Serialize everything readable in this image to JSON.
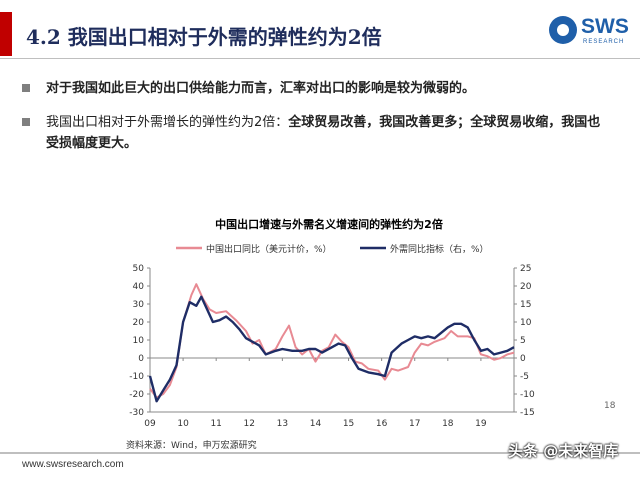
{
  "header": {
    "title": "4.2 我国出口相对于外需的弹性约为2倍",
    "logo_text": "SWS",
    "logo_sub": "RESEARCH"
  },
  "bullets": {
    "b1": "对于我国如此巨大的出口供给能力而言，汇率对出口的影响是较为微弱的。",
    "b2_normal": "我国出口相对于外需增长的弹性约为2倍：",
    "b2_bold": "全球贸易改善，我国改善更多；全球贸易收缩，我国也受损幅度更大。"
  },
  "footer": {
    "url": "www.swsresearch.com",
    "page": "18",
    "watermark": "头条 @未来智库"
  },
  "colors": {
    "accent_red": "#c00000",
    "navy": "#1f2d5c",
    "pink_series": "#e88a93",
    "navy_series": "#1f2d66"
  },
  "chart_data": {
    "type": "line",
    "title": "中国出口增速与外需名义增速间的弹性约为2倍",
    "source": "资料来源：Wind，申万宏源研究",
    "x_tick_labels": [
      "09",
      "10",
      "11",
      "12",
      "13",
      "14",
      "15",
      "16",
      "17",
      "18",
      "19"
    ],
    "x_tick_values": [
      2009,
      2010,
      2011,
      2012,
      2013,
      2014,
      2015,
      2016,
      2017,
      2018,
      2019
    ],
    "xlim": [
      2009,
      2020
    ],
    "y_left": {
      "lim": [
        -30,
        50
      ],
      "ticks": [
        "-30",
        "-20",
        "-10",
        "0",
        "10",
        "20",
        "30",
        "40",
        "50"
      ]
    },
    "y_right": {
      "lim": [
        -15,
        25
      ],
      "ticks": [
        "-15",
        "-10",
        "-5",
        "0",
        "5",
        "10",
        "15",
        "20",
        "25"
      ]
    },
    "legend_placement": "top",
    "grid": false,
    "series": [
      {
        "name": "中国出口同比（美元计价，%）",
        "axis": "left",
        "color": "#e88a93",
        "points": [
          [
            2009.0,
            -17
          ],
          [
            2009.2,
            -22
          ],
          [
            2009.4,
            -20
          ],
          [
            2009.6,
            -15
          ],
          [
            2009.8,
            -5
          ],
          [
            2010.0,
            20
          ],
          [
            2010.25,
            35
          ],
          [
            2010.4,
            41
          ],
          [
            2010.6,
            33
          ],
          [
            2010.8,
            27
          ],
          [
            2011.0,
            25
          ],
          [
            2011.3,
            26
          ],
          [
            2011.6,
            21
          ],
          [
            2011.9,
            15
          ],
          [
            2012.1,
            8
          ],
          [
            2012.3,
            10
          ],
          [
            2012.5,
            2
          ],
          [
            2012.8,
            5
          ],
          [
            2013.0,
            12
          ],
          [
            2013.2,
            18
          ],
          [
            2013.4,
            6
          ],
          [
            2013.6,
            2
          ],
          [
            2013.8,
            5
          ],
          [
            2014.0,
            -2
          ],
          [
            2014.2,
            4
          ],
          [
            2014.4,
            6
          ],
          [
            2014.6,
            13
          ],
          [
            2014.8,
            9
          ],
          [
            2015.0,
            6
          ],
          [
            2015.2,
            -2
          ],
          [
            2015.4,
            -3
          ],
          [
            2015.6,
            -6
          ],
          [
            2015.9,
            -7
          ],
          [
            2016.1,
            -12
          ],
          [
            2016.3,
            -6
          ],
          [
            2016.5,
            -7
          ],
          [
            2016.8,
            -5
          ],
          [
            2017.0,
            3
          ],
          [
            2017.2,
            8
          ],
          [
            2017.4,
            7
          ],
          [
            2017.6,
            9
          ],
          [
            2017.9,
            11
          ],
          [
            2018.1,
            15
          ],
          [
            2018.3,
            12
          ],
          [
            2018.6,
            12
          ],
          [
            2018.8,
            11
          ],
          [
            2019.0,
            2
          ],
          [
            2019.2,
            1
          ],
          [
            2019.4,
            -1
          ],
          [
            2019.6,
            0
          ],
          [
            2019.8,
            2
          ],
          [
            2020.0,
            3
          ]
        ]
      },
      {
        "name": "外需同比指标（右，%）",
        "axis": "right",
        "color": "#1f2d66",
        "points": [
          [
            2009.0,
            -5
          ],
          [
            2009.2,
            -12
          ],
          [
            2009.4,
            -9
          ],
          [
            2009.6,
            -6
          ],
          [
            2009.8,
            -2
          ],
          [
            2010.0,
            10
          ],
          [
            2010.2,
            15.5
          ],
          [
            2010.4,
            14.5
          ],
          [
            2010.55,
            17
          ],
          [
            2010.7,
            14
          ],
          [
            2010.9,
            10
          ],
          [
            2011.1,
            10.5
          ],
          [
            2011.3,
            11.5
          ],
          [
            2011.5,
            10
          ],
          [
            2011.7,
            8
          ],
          [
            2011.9,
            5.5
          ],
          [
            2012.1,
            4.5
          ],
          [
            2012.3,
            3.5
          ],
          [
            2012.5,
            1
          ],
          [
            2012.8,
            2
          ],
          [
            2013.0,
            2.5
          ],
          [
            2013.3,
            2
          ],
          [
            2013.6,
            2
          ],
          [
            2013.8,
            2.5
          ],
          [
            2014.0,
            2.5
          ],
          [
            2014.2,
            1.5
          ],
          [
            2014.5,
            3
          ],
          [
            2014.7,
            4
          ],
          [
            2014.9,
            3.5
          ],
          [
            2015.1,
            0
          ],
          [
            2015.3,
            -3
          ],
          [
            2015.6,
            -4
          ],
          [
            2015.9,
            -4.5
          ],
          [
            2016.1,
            -5
          ],
          [
            2016.3,
            1.5
          ],
          [
            2016.6,
            4
          ],
          [
            2016.8,
            5
          ],
          [
            2017.0,
            6
          ],
          [
            2017.2,
            5.5
          ],
          [
            2017.4,
            6
          ],
          [
            2017.6,
            5.5
          ],
          [
            2017.8,
            7
          ],
          [
            2018.0,
            8.5
          ],
          [
            2018.2,
            9.5
          ],
          [
            2018.4,
            9.5
          ],
          [
            2018.6,
            8.5
          ],
          [
            2018.8,
            5
          ],
          [
            2019.0,
            2
          ],
          [
            2019.2,
            2.5
          ],
          [
            2019.4,
            1
          ],
          [
            2019.6,
            1.5
          ],
          [
            2019.8,
            2
          ],
          [
            2020.0,
            3
          ]
        ]
      }
    ]
  }
}
